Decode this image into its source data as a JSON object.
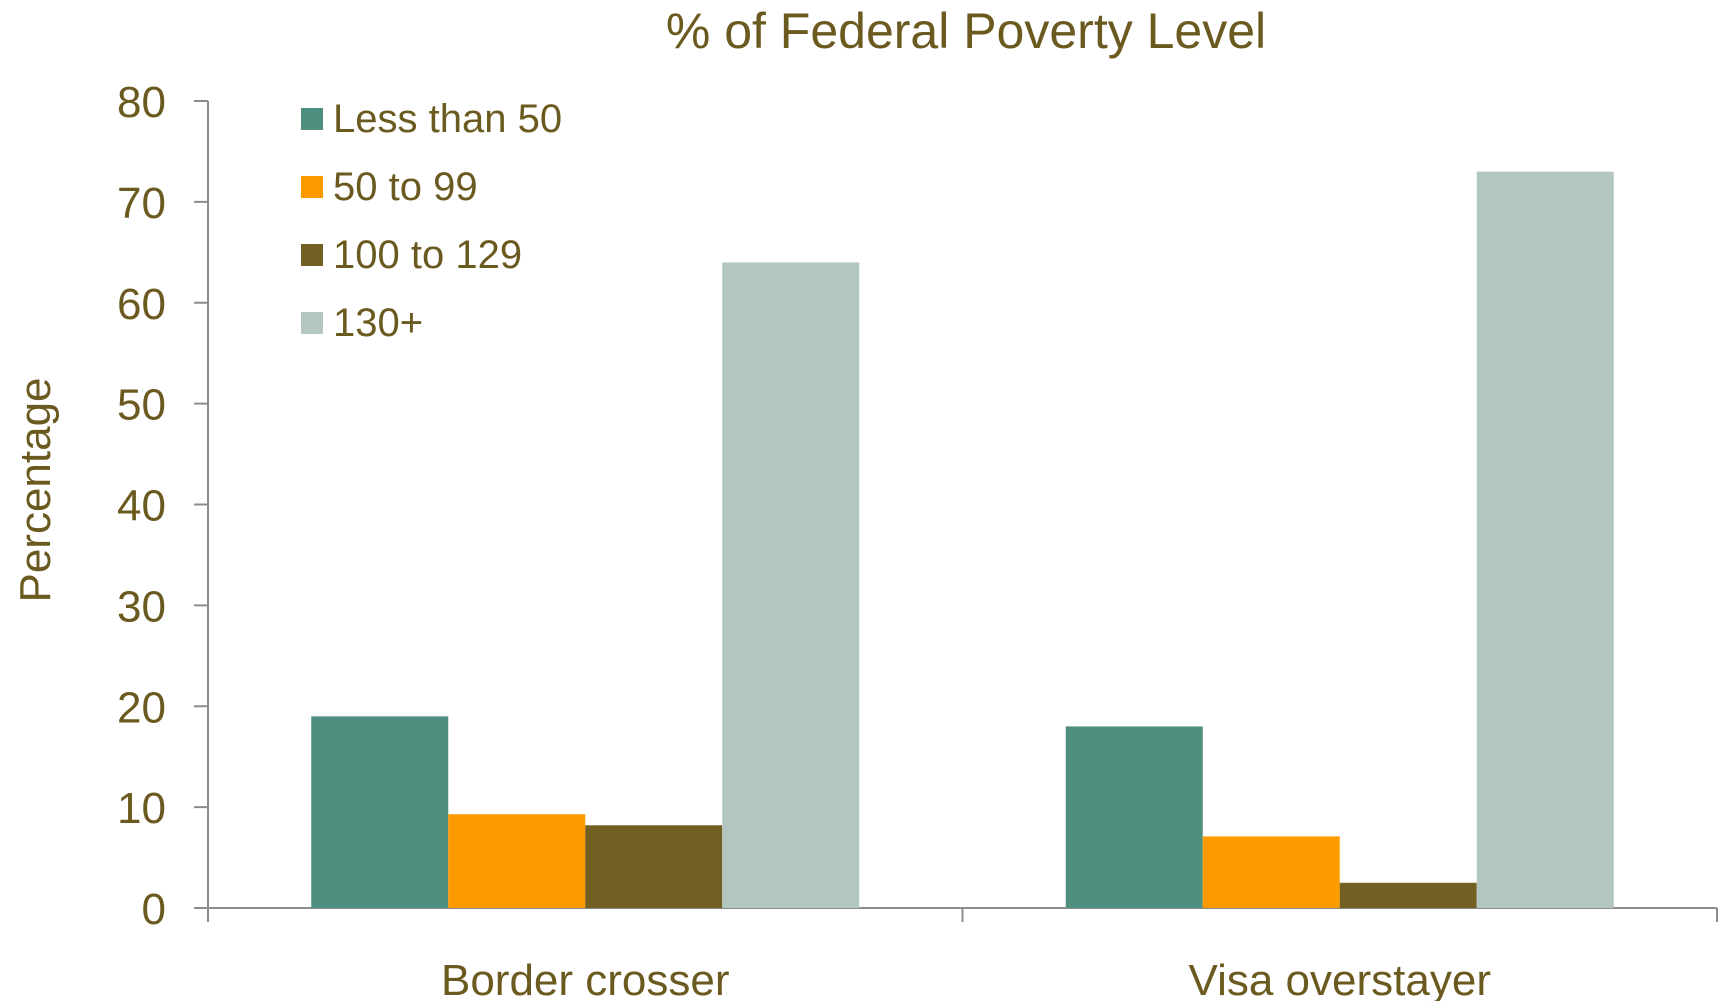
{
  "chart_data": {
    "type": "bar",
    "title": "% of Federal Poverty Level",
    "xlabel": "",
    "ylabel": "Percentage",
    "categories": [
      "Border crosser",
      "Visa overstayer"
    ],
    "series": [
      {
        "name": "Less than 50",
        "color": "#4f8f7f",
        "values": [
          19,
          18
        ]
      },
      {
        "name": "50 to 99",
        "color": "#fd9a00",
        "values": [
          9.3,
          7.1
        ]
      },
      {
        "name": "100 to 129",
        "color": "#725f22",
        "values": [
          8.2,
          2.5
        ]
      },
      {
        "name": "130+",
        "color": "#b3c7bf",
        "values": [
          64,
          73
        ]
      }
    ],
    "ylim": [
      0,
      80
    ],
    "yticks": [
      "0",
      "10",
      "20",
      "30",
      "40",
      "50",
      "60",
      "70",
      "80"
    ],
    "grid": false,
    "legend_position": "top-left",
    "text_color": "#6b5a1f",
    "axis_color": "#8c8c8c"
  }
}
